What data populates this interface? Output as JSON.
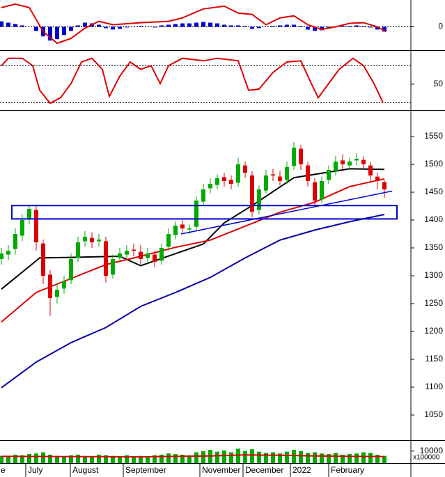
{
  "chart_data": [
    {
      "type": "combo",
      "xlim": [
        -0.2,
        58.8
      ],
      "ylim": [
        -34,
        38
      ],
      "yticks": [
        0
      ],
      "zero_line": true,
      "series": [
        {
          "type": "bar",
          "color": "#0000cc",
          "values": [
            8,
            6,
            4,
            2,
            0,
            -6,
            -14,
            -20,
            -18,
            -12,
            -6,
            2,
            6,
            5,
            3,
            -2,
            -4,
            -3,
            -1,
            0,
            1,
            0,
            -1,
            2,
            3,
            4,
            5,
            5,
            6,
            7,
            6,
            5,
            3,
            2,
            2,
            1,
            -3,
            -2,
            0,
            1,
            2,
            3,
            3,
            1,
            -4,
            -6,
            -5,
            -2,
            0,
            1,
            1,
            2,
            1,
            -1,
            -4,
            -7
          ]
        },
        {
          "type": "line",
          "color": "#dd0000",
          "x": [
            0,
            2,
            4,
            6,
            8,
            10,
            12,
            14,
            16,
            20,
            24,
            26,
            29,
            32,
            34,
            36,
            38,
            40,
            42,
            44,
            46,
            48,
            50,
            52,
            54,
            55.2
          ],
          "values": [
            28,
            33,
            28,
            -7,
            -24,
            -17,
            -2,
            8,
            3,
            6,
            8,
            13,
            26,
            30,
            20,
            18,
            3,
            13,
            16,
            3,
            -4,
            0,
            5,
            6,
            0,
            -7
          ]
        }
      ]
    },
    {
      "type": "line",
      "xlim": [
        -0.2,
        58.8
      ],
      "ylim": [
        8,
        103
      ],
      "yticks": [
        50
      ],
      "levels": [
        80,
        20
      ],
      "series": [
        {
          "color": "#dd0000",
          "x": [
            0,
            1,
            3,
            4.5,
            5.5,
            7,
            8.5,
            10,
            11.5,
            13,
            14.5,
            15.5,
            17,
            18.5,
            20,
            21.5,
            22.8,
            24,
            26,
            29,
            31,
            34,
            35.5,
            37,
            39,
            41,
            43,
            44.5,
            45.5,
            47,
            48.5,
            50.5,
            52,
            53.5,
            54.8
          ],
          "values": [
            80,
            92,
            92,
            80,
            40,
            19,
            28,
            51,
            86,
            92,
            74,
            30,
            63,
            86,
            74,
            80,
            51,
            80,
            92,
            88,
            92,
            88,
            40,
            42,
            69,
            86,
            88,
            51,
            28,
            51,
            74,
            92,
            80,
            51,
            20
          ]
        }
      ]
    },
    {
      "type": "candlestick",
      "xlim": [
        -0.2,
        58.8
      ],
      "ylim": [
        1005,
        1595
      ],
      "yticks": [
        1050,
        1100,
        1150,
        1200,
        1250,
        1300,
        1350,
        1400,
        1450,
        1500,
        1550
      ],
      "up_color": "#00aa00",
      "down_color": "#dd0000",
      "open": [
        1330,
        1338,
        1348,
        1372,
        1402,
        1418,
        1358,
        1302,
        1262,
        1277,
        1292,
        1332,
        1362,
        1368,
        1362,
        1362,
        1302,
        1332,
        1338,
        1347,
        1343,
        1332,
        1338,
        1327,
        1352,
        1373,
        1392,
        1383,
        1388,
        1433,
        1457,
        1463,
        1477,
        1472,
        1467,
        1498,
        1480,
        1418,
        1453,
        1482,
        1478,
        1472,
        1497,
        1528,
        1498,
        1468,
        1437,
        1472,
        1488,
        1507,
        1498,
        1507,
        1508,
        1498,
        1478,
        1468
      ],
      "high": [
        1350,
        1355,
        1385,
        1410,
        1428,
        1428,
        1365,
        1310,
        1285,
        1300,
        1340,
        1370,
        1380,
        1378,
        1375,
        1370,
        1338,
        1350,
        1355,
        1358,
        1355,
        1350,
        1345,
        1358,
        1385,
        1398,
        1400,
        1392,
        1442,
        1465,
        1475,
        1482,
        1485,
        1480,
        1512,
        1505,
        1488,
        1462,
        1490,
        1492,
        1488,
        1505,
        1540,
        1535,
        1505,
        1475,
        1478,
        1498,
        1515,
        1518,
        1512,
        1520,
        1515,
        1505,
        1485,
        1472
      ],
      "low": [
        1320,
        1328,
        1338,
        1362,
        1392,
        1345,
        1285,
        1228,
        1250,
        1268,
        1285,
        1325,
        1352,
        1350,
        1352,
        1288,
        1295,
        1325,
        1330,
        1335,
        1318,
        1322,
        1315,
        1320,
        1345,
        1365,
        1378,
        1375,
        1382,
        1425,
        1448,
        1455,
        1460,
        1455,
        1460,
        1475,
        1405,
        1410,
        1448,
        1470,
        1462,
        1465,
        1490,
        1490,
        1460,
        1425,
        1430,
        1465,
        1480,
        1492,
        1490,
        1498,
        1492,
        1470,
        1455,
        1440
      ],
      "close": [
        1340,
        1345,
        1375,
        1400,
        1420,
        1360,
        1300,
        1260,
        1275,
        1290,
        1330,
        1360,
        1370,
        1360,
        1365,
        1300,
        1330,
        1340,
        1345,
        1345,
        1330,
        1340,
        1325,
        1350,
        1375,
        1390,
        1385,
        1385,
        1435,
        1455,
        1465,
        1475,
        1470,
        1465,
        1500,
        1485,
        1415,
        1455,
        1480,
        1480,
        1470,
        1495,
        1530,
        1500,
        1470,
        1435,
        1470,
        1490,
        1505,
        1500,
        1505,
        1510,
        1500,
        1480,
        1470,
        1455
      ],
      "series": [
        {
          "color": "#000000",
          "x": [
            0,
            5.5,
            10,
            17,
            20,
            29,
            32,
            36,
            42,
            45,
            50,
            55
          ],
          "values": [
            1276,
            1332,
            1333,
            1335,
            1318,
            1357,
            1395,
            1426,
            1476,
            1482,
            1492,
            1491
          ]
        },
        {
          "color": "#dd0000",
          "x": [
            0,
            5,
            10,
            15,
            20,
            25,
            30,
            35,
            40,
            45,
            50,
            55
          ],
          "values": [
            1217,
            1270,
            1295,
            1320,
            1335,
            1351,
            1364,
            1389,
            1414,
            1432,
            1460,
            1474
          ]
        },
        {
          "color": "#0000aa",
          "x": [
            0,
            5,
            10,
            15,
            20,
            25,
            30,
            35,
            40,
            45,
            50,
            55
          ],
          "values": [
            1099,
            1145,
            1180,
            1207,
            1245,
            1270,
            1297,
            1332,
            1364,
            1382,
            1397,
            1410
          ]
        }
      ],
      "zone": {
        "x": [
          1.5,
          56.8
        ],
        "y": [
          1402,
          1426
        ],
        "color": "#0000cc"
      },
      "trendline": {
        "x": [
          25.8,
          56.1
        ],
        "y": [
          1375,
          1452
        ],
        "color": "#0000cc"
      }
    },
    {
      "type": "combo",
      "xlim": [
        -0.2,
        58.8
      ],
      "ylim": [
        0,
        18000
      ],
      "yticks": [
        10000
      ],
      "unit_label": "x100000",
      "xticks": [
        {
          "value": -0.4,
          "label": "e"
        },
        {
          "value": 3.5,
          "label": "July"
        },
        {
          "value": 9.9,
          "label": "August"
        },
        {
          "value": 17.5,
          "label": "September"
        },
        {
          "value": 28.5,
          "label": "November"
        },
        {
          "value": 34.7,
          "label": "December"
        },
        {
          "value": 41.5,
          "label": "2022"
        },
        {
          "value": 47,
          "label": "February"
        }
      ],
      "series": [
        {
          "type": "bar",
          "color": "#00aa00",
          "values": [
            6000,
            5500,
            7000,
            6500,
            7500,
            8000,
            9000,
            7000,
            6000,
            5500,
            6500,
            7000,
            6000,
            5500,
            7000,
            6500,
            6000,
            5000,
            6500,
            5500,
            6000,
            5000,
            6500,
            7000,
            8000,
            7500,
            7000,
            6500,
            9000,
            10000,
            11000,
            9500,
            10500,
            9000,
            12000,
            10000,
            11500,
            9500,
            8500,
            9000,
            8000,
            9500,
            11000,
            10000,
            8500,
            9000,
            8000,
            7500,
            8500,
            7000,
            7500,
            8000,
            9000,
            8500,
            7000,
            6000
          ]
        },
        {
          "type": "line",
          "color": "#dd0000",
          "x": [
            0,
            10,
            20,
            30,
            35,
            40,
            45,
            50,
            55
          ],
          "values": [
            5600,
            5400,
            5200,
            5900,
            6800,
            6500,
            6000,
            5600,
            5400
          ]
        }
      ]
    }
  ]
}
